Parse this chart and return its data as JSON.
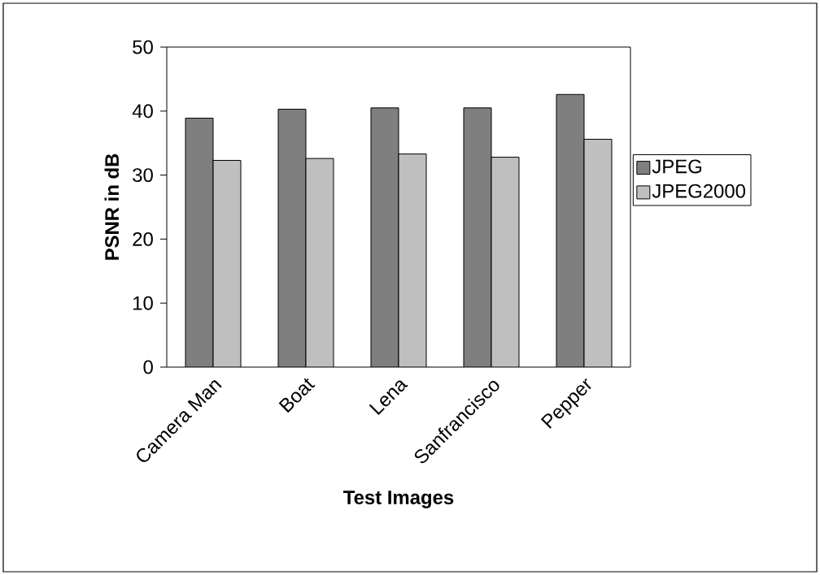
{
  "chart_data": {
    "type": "bar",
    "xlabel": "Test Images",
    "ylabel": "PSNR in dB",
    "categories": [
      "Camera Man",
      "Boat",
      "Lena",
      "Sanfrancisco",
      "Pepper"
    ],
    "series": [
      {
        "name": "JPEG",
        "color": "#7f7f7f",
        "values": [
          38.9,
          40.3,
          40.5,
          40.5,
          42.6
        ]
      },
      {
        "name": "JPEG2000",
        "color": "#bfbfbf",
        "values": [
          32.3,
          32.6,
          33.3,
          32.8,
          35.6
        ]
      }
    ],
    "ylim": [
      0,
      50
    ],
    "yticks": [
      0,
      10,
      20,
      30,
      40,
      50
    ],
    "legend": "right"
  }
}
